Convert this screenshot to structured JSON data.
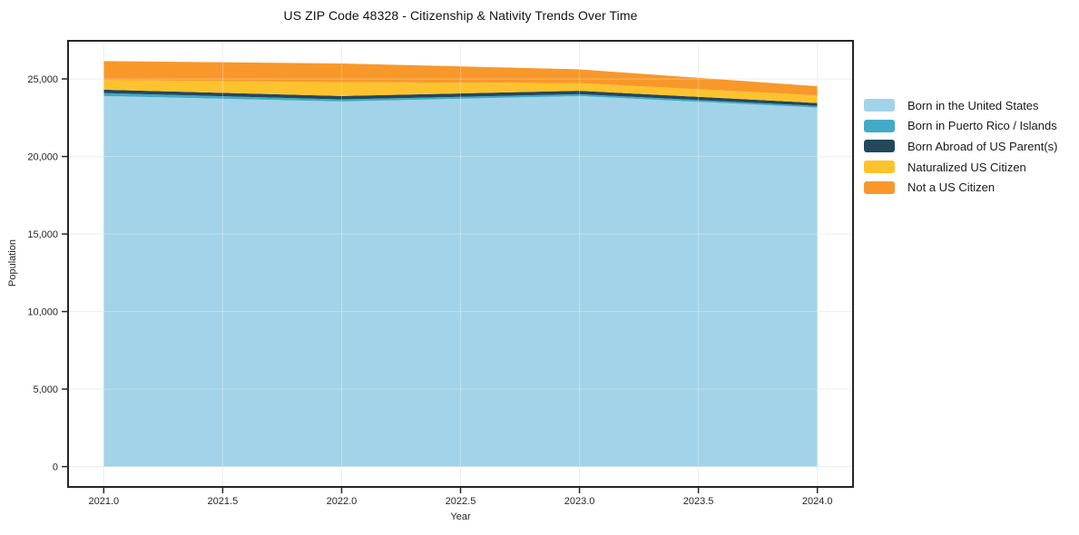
{
  "chart_data": {
    "type": "area",
    "stacked": true,
    "title": "US ZIP Code 48328 - Citizenship & Nativity Trends Over Time",
    "xlabel": "Year",
    "ylabel": "Population",
    "x": [
      2021,
      2022,
      2023,
      2024
    ],
    "series": [
      {
        "name": "Born in the United States",
        "color": "#a3d3e8",
        "values": [
          23900,
          23550,
          23900,
          23150
        ]
      },
      {
        "name": "Born in Puerto Rico / Islands",
        "color": "#41aac6",
        "values": [
          190,
          130,
          120,
          110
        ]
      },
      {
        "name": "Born Abroad of US Parent(s)",
        "color": "#22485c",
        "values": [
          220,
          220,
          220,
          190
        ]
      },
      {
        "name": "Naturalized US Citizen",
        "color": "#fdc32e",
        "values": [
          620,
          890,
          490,
          490
        ]
      },
      {
        "name": "Not a US Citizen",
        "color": "#f8982b",
        "values": [
          1220,
          1210,
          890,
          590
        ]
      }
    ],
    "totals": [
      26150,
      26000,
      25620,
      24530
    ],
    "xlim": [
      2020.85,
      2024.15
    ],
    "ylim": [
      -1310,
      27460
    ],
    "x_ticks": [
      2021.0,
      2021.5,
      2022.0,
      2022.5,
      2023.0,
      2023.5,
      2024.0
    ],
    "x_tick_labels": [
      "2021.0",
      "2021.5",
      "2022.0",
      "2022.5",
      "2023.0",
      "2023.5",
      "2024.0"
    ],
    "y_ticks": [
      0,
      5000,
      10000,
      15000,
      20000,
      25000
    ],
    "y_tick_labels": [
      "0",
      "5,000",
      "10,000",
      "15,000",
      "20,000",
      "25,000"
    ],
    "grid": true,
    "legend_position": "right",
    "colors": {
      "grid": "#e7e7e7",
      "grid_over_area": "rgba(255,255,255,0.30)",
      "spine": "#262626",
      "tick_text": "#262626",
      "background": "#ffffff"
    }
  }
}
